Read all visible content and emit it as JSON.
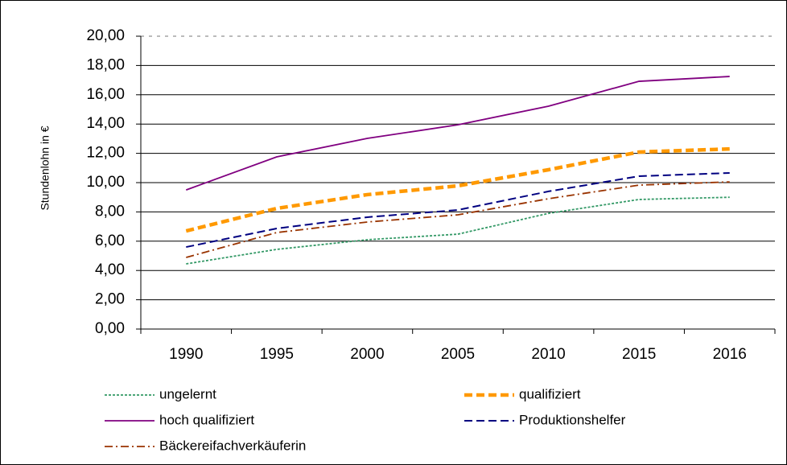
{
  "chart_data": {
    "type": "line",
    "y_label": "Stundenlohn in €",
    "categories": [
      "1990",
      "1995",
      "2000",
      "2005",
      "2010",
      "2015",
      "2016"
    ],
    "series": [
      {
        "name": "ungelernt",
        "color": "#339966",
        "line_style": "dotted",
        "values": [
          4.45,
          5.44,
          6.1,
          6.48,
          7.9,
          8.85,
          9.0
        ]
      },
      {
        "name": "qualifiziert",
        "color": "#ff9900",
        "line_style": "bold-dashed",
        "values": [
          6.7,
          8.24,
          9.18,
          9.78,
          10.88,
          12.09,
          12.3
        ]
      },
      {
        "name": "hoch qualifiziert",
        "color": "#800080",
        "line_style": "solid",
        "values": [
          9.5,
          11.76,
          13.02,
          13.95,
          15.22,
          16.92,
          17.25
        ]
      },
      {
        "name": "Produktionshelfer",
        "color": "#000080",
        "line_style": "dashed",
        "values": [
          5.6,
          6.87,
          7.64,
          8.13,
          9.4,
          10.44,
          10.66
        ]
      },
      {
        "name": "Bäckereifachverkäuferin",
        "color": "#993300",
        "line_style": "dash-dot",
        "values": [
          4.89,
          6.59,
          7.31,
          7.8,
          8.9,
          9.83,
          10.05
        ]
      }
    ],
    "ylim": [
      0,
      20
    ],
    "yticks": [
      {
        "value": 0,
        "label": "0,00"
      },
      {
        "value": 2,
        "label": "2,00"
      },
      {
        "value": 4,
        "label": "4,00"
      },
      {
        "value": 6,
        "label": "6,00"
      },
      {
        "value": 8,
        "label": "8,00"
      },
      {
        "value": 10,
        "label": "10,00"
      },
      {
        "value": 12,
        "label": "12,00"
      },
      {
        "value": 14,
        "label": "14,00"
      },
      {
        "value": 16,
        "label": "16,00"
      },
      {
        "value": 18,
        "label": "18,00"
      },
      {
        "value": 20,
        "label": "20,00"
      }
    ],
    "grid": true,
    "legend": "bottom"
  }
}
